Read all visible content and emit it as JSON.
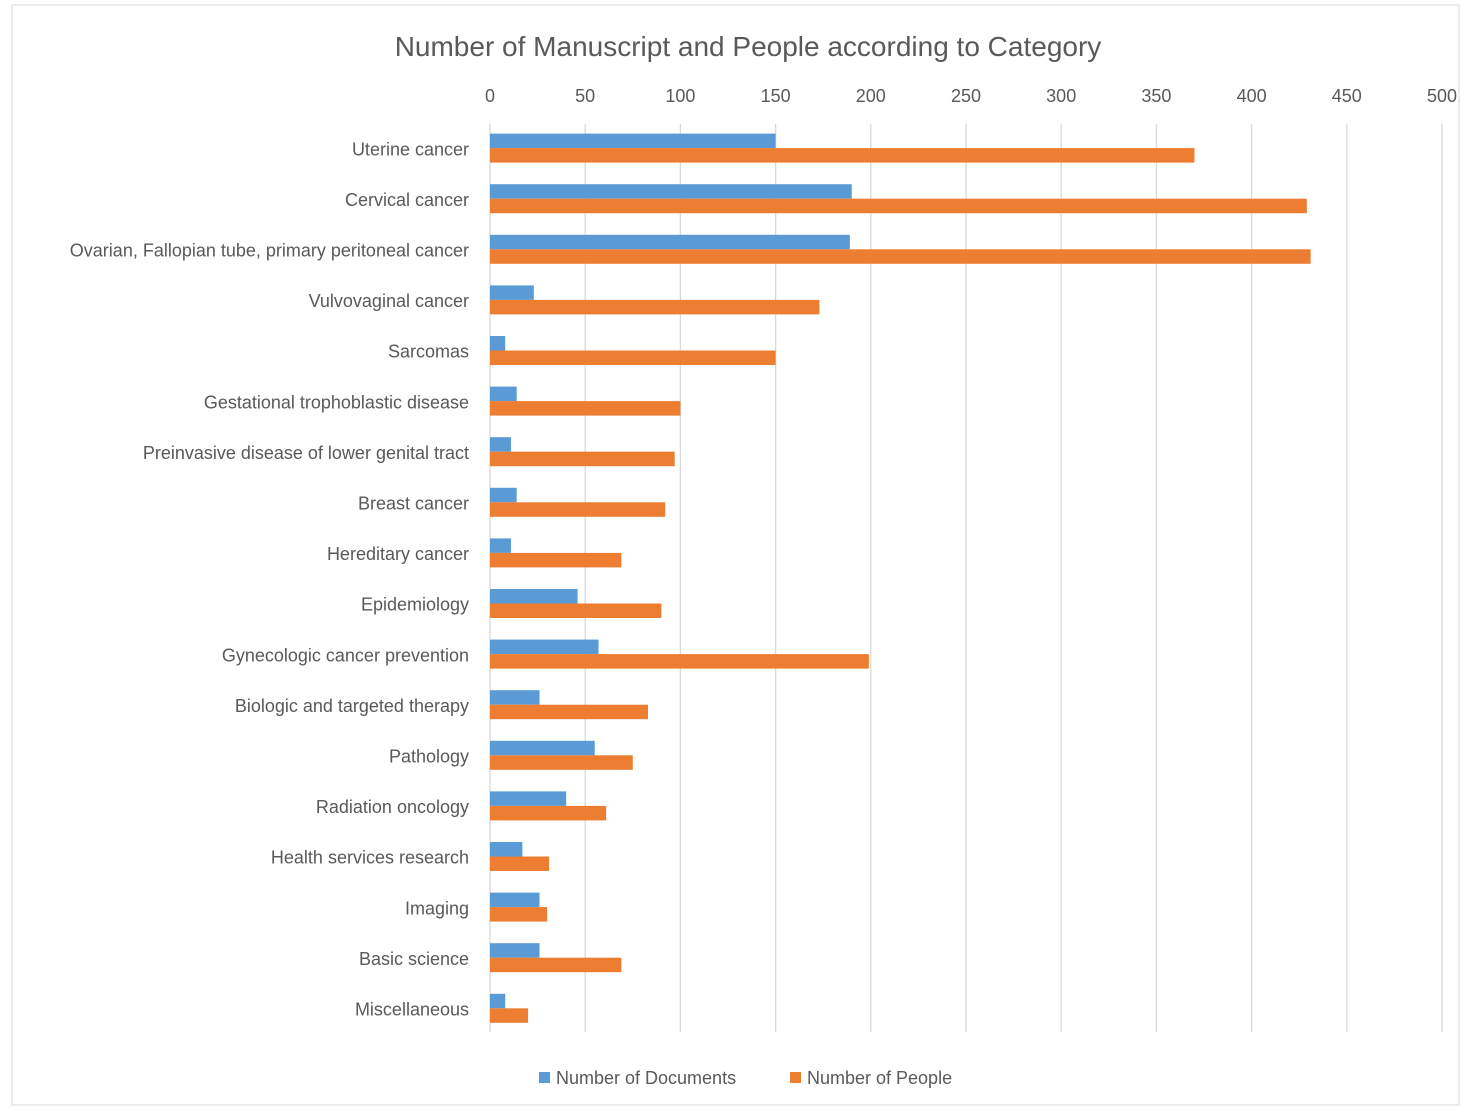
{
  "colors": {
    "documents": "#5b9bd5",
    "people": "#ed7d31",
    "grid": "#d9d9d9",
    "text": "#595959",
    "frame": "#d9d9d9"
  },
  "chart_data": {
    "type": "bar",
    "orientation": "horizontal",
    "title": "Number of Manuscript and People according to Category",
    "xlabel": "",
    "ylabel": "",
    "xlim": [
      0,
      500
    ],
    "x_ticks": [
      "0",
      "50",
      "100",
      "150",
      "200",
      "250",
      "300",
      "350",
      "400",
      "450",
      "500"
    ],
    "x_tick_values": [
      0,
      50,
      100,
      150,
      200,
      250,
      300,
      350,
      400,
      450,
      500
    ],
    "x_axis_position": "top",
    "grid": true,
    "legend_position": "bottom",
    "categories": [
      "Uterine cancer",
      "Cervical cancer",
      "Ovarian, Fallopian tube, primary peritoneal cancer",
      "Vulvovaginal cancer",
      "Sarcomas",
      "Gestational trophoblastic disease",
      "Preinvasive disease of lower genital tract",
      "Breast cancer",
      "Hereditary cancer",
      "Epidemiology",
      "Gynecologic cancer prevention",
      "Biologic and targeted therapy",
      "Pathology",
      "Radiation oncology",
      "Health services research",
      "Imaging",
      "Basic science",
      "Miscellaneous"
    ],
    "series": [
      {
        "name": "Number of Documents",
        "values": [
          150,
          190,
          189,
          23,
          8,
          14,
          11,
          14,
          11,
          46,
          57,
          26,
          55,
          40,
          17,
          26,
          26,
          8
        ]
      },
      {
        "name": "Number of People",
        "values": [
          370,
          429,
          431,
          173,
          150,
          100,
          97,
          92,
          69,
          90,
          199,
          83,
          75,
          61,
          31,
          30,
          69,
          20
        ]
      }
    ]
  }
}
